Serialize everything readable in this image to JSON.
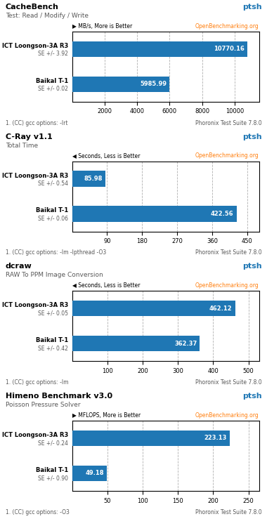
{
  "chart_data": [
    {
      "type": "bar",
      "orientation": "horizontal",
      "title": "CacheBench",
      "subtitle": "Test: Read / Modify / Write",
      "unit_label": "▶ MB/s, More is Better",
      "source": "OpenBenchmarking.org",
      "logo": "ptsh",
      "footer": "1. (CC) gcc options: -lrt",
      "software": "Phoronix Test Suite 7.8.0",
      "categories": [
        "ICT Loongson-3A R3",
        "Baikal T-1"
      ],
      "se_labels": [
        "SE +/- 3.92",
        "SE +/- 0.02"
      ],
      "values": [
        10770.16,
        5985.99
      ],
      "xlim": [
        0,
        11500
      ],
      "xticks": [
        2000,
        4000,
        6000,
        8000,
        10000
      ],
      "grid": true,
      "data_labels": true
    },
    {
      "type": "bar",
      "orientation": "horizontal",
      "title": "C-Ray v1.1",
      "subtitle": "Total Time",
      "unit_label": "◀ Seconds, Less is Better",
      "source": "OpenBenchmarking.org",
      "logo": "ptsh",
      "footer": "1. (CC) gcc options: -lm -lpthread -O3",
      "software": "Phoronix Test Suite 7.8.0",
      "categories": [
        "ICT Loongson-3A R3",
        "Baikal T-1"
      ],
      "se_labels": [
        "SE +/- 0.54",
        "SE +/- 0.06"
      ],
      "values": [
        85.98,
        422.56
      ],
      "xlim": [
        0,
        480
      ],
      "xticks": [
        90,
        180,
        270,
        360,
        450
      ],
      "grid": true,
      "data_labels": true
    },
    {
      "type": "bar",
      "orientation": "horizontal",
      "title": "dcraw",
      "subtitle": "RAW To PPM Image Conversion",
      "unit_label": "◀ Seconds, Less is Better",
      "source": "OpenBenchmarking.org",
      "logo": "ptsh",
      "footer": "1. (CC) gcc options: -lm",
      "software": "Phoronix Test Suite 7.8.0",
      "categories": [
        "ICT Loongson-3A R3",
        "Baikal T-1"
      ],
      "se_labels": [
        "SE +/- 0.05",
        "SE +/- 0.42"
      ],
      "values": [
        462.12,
        362.37
      ],
      "xlim": [
        0,
        530
      ],
      "xticks": [
        100,
        200,
        300,
        400,
        500
      ],
      "grid": true,
      "data_labels": true
    },
    {
      "type": "bar",
      "orientation": "horizontal",
      "title": "Himeno Benchmark v3.0",
      "subtitle": "Poisson Pressure Solver",
      "unit_label": "▶ MFLOPS, More is Better",
      "source": "OpenBenchmarking.org",
      "logo": "ptsh",
      "footer": "1. (CC) gcc options: -O3",
      "software": "Phoronix Test Suite 7.8.0",
      "categories": [
        "ICT Loongson-3A R3",
        "Baikal T-1"
      ],
      "se_labels": [
        "SE +/- 0.24",
        "SE +/- 0.90"
      ],
      "values": [
        223.13,
        49.18
      ],
      "xlim": [
        0,
        265
      ],
      "xticks": [
        50,
        100,
        150,
        200,
        250
      ],
      "grid": true,
      "data_labels": true
    }
  ]
}
